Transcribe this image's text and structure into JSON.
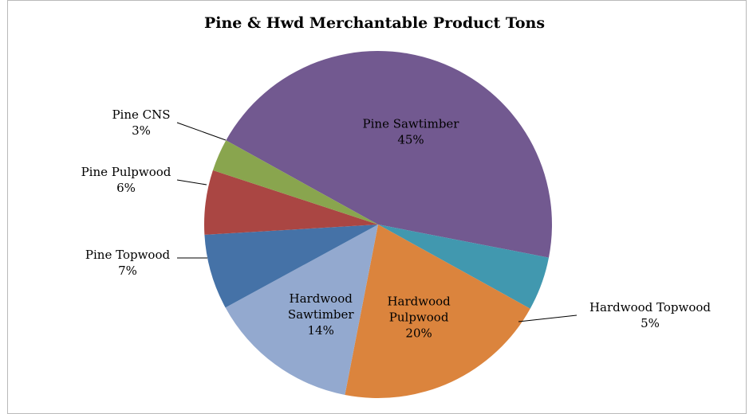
{
  "chart_data": {
    "type": "pie",
    "title": "Pine & Hwd Merchantable Product Tons",
    "slices": [
      {
        "name": "Pine Sawtimber",
        "value": 45,
        "label_lines": [
          "Pine Sawtimber",
          "45%"
        ],
        "color": "#725990"
      },
      {
        "name": "Hardwood Topwood",
        "value": 5,
        "label_lines": [
          "Hardwood Topwood",
          "5%"
        ],
        "color": "#4198AF"
      },
      {
        "name": "Hardwood Pulpwood",
        "value": 20,
        "label_lines": [
          "Hardwood",
          "Pulpwood",
          "20%"
        ],
        "color": "#DB843D"
      },
      {
        "name": "Hardwood Sawtimber",
        "value": 14,
        "label_lines": [
          "Hardwood",
          "Sawtimber",
          "14%"
        ],
        "color": "#93A9CF"
      },
      {
        "name": "Pine Topwood",
        "value": 7,
        "label_lines": [
          "Pine Topwood",
          "7%"
        ],
        "color": "#4572A7"
      },
      {
        "name": "Pine Pulpwood",
        "value": 6,
        "label_lines": [
          "Pine Pulpwood",
          "6%"
        ],
        "color": "#AA4643"
      },
      {
        "name": "Pine CNS",
        "value": 3,
        "label_lines": [
          "Pine CNS",
          "3%"
        ],
        "color": "#89A54E"
      }
    ],
    "legend": "none"
  }
}
